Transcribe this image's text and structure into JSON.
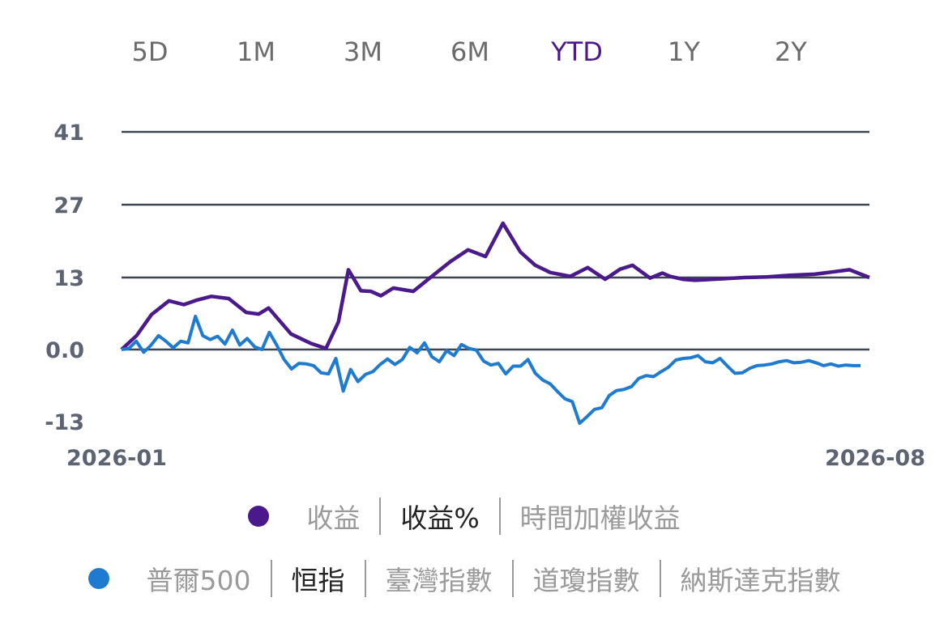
{
  "tabs": [
    "5D",
    "1M",
    "3M",
    "6M",
    "YTD",
    "1Y",
    "2Y"
  ],
  "active_tab": "YTD",
  "legend_main": {
    "color": "#4a1a8c",
    "options": [
      "收益",
      "收益%",
      "時間加權收益"
    ],
    "selected": "收益%"
  },
  "legend_bench": {
    "color": "#1f7bd0",
    "options": [
      "普爾500",
      "恒指",
      "臺灣指數",
      "道瓊指數",
      "納斯達克指數"
    ],
    "selected": "恒指"
  },
  "chart_data": {
    "type": "line",
    "x_start_label": "2026-01",
    "x_end_label": "2026-08",
    "y_ticks": [
      "41",
      "27",
      "13",
      "0.0",
      "-13"
    ],
    "ylim": [
      -13,
      41
    ],
    "grid": true,
    "series": [
      {
        "color": "#4a1a8c",
        "x": [
          0,
          0.06,
          0.12,
          0.19,
          0.25,
          0.3,
          0.36,
          0.43,
          0.5,
          0.55,
          0.59,
          0.68,
          0.76,
          0.82,
          0.87,
          0.91,
          0.96,
          1.0,
          1.04,
          1.09,
          1.17,
          1.25,
          1.32,
          1.39,
          1.46,
          1.53,
          1.6,
          1.66,
          1.72,
          1.8,
          1.87,
          1.94,
          2.0,
          2.05,
          2.12,
          2.17,
          2.2,
          2.25,
          2.3,
          2.34,
          2.42,
          2.5,
          2.59,
          2.68,
          2.78,
          2.85,
          2.92,
          3.0
        ],
        "values": [
          0,
          2.5,
          6.3,
          8.8,
          8.1,
          8.9,
          9.6,
          9.2,
          6.7,
          6.4,
          7.5,
          2.8,
          1.1,
          0.2,
          5,
          14.4,
          10.6,
          10.5,
          9.7,
          11.1,
          10.5,
          13.4,
          15.9,
          18,
          16.8,
          22.8,
          17.6,
          15.2,
          13.9,
          13.2,
          14.8,
          12.7,
          14.5,
          15.2,
          12.9,
          13.8,
          13.2,
          12.7,
          12.5,
          12.6,
          12.8,
          13,
          13.1,
          13.4,
          13.6,
          14,
          14.4,
          13.0
        ]
      },
      {
        "color": "#1f7bd0",
        "x": [
          0,
          0.02,
          0.04,
          0.06,
          0.08,
          0.1,
          0.12,
          0.14,
          0.16,
          0.18,
          0.2,
          0.22,
          0.24,
          0.26,
          0.28,
          0.3,
          0.32,
          0.34,
          0.36,
          0.38,
          0.4,
          0.42,
          0.44,
          0.46,
          0.48,
          0.5,
          0.52,
          0.54,
          0.56,
          0.58,
          0.6,
          0.62,
          0.64,
          0.66,
          0.68,
          0.7,
          0.72,
          0.74,
          0.76,
          0.78,
          0.8,
          0.82,
          0.84,
          0.86,
          0.88,
          0.9,
          0.92,
          0.94,
          0.96,
          0.98,
          1.0,
          1.02,
          1.04,
          1.06,
          1.08,
          1.1,
          1.12,
          1.14,
          1.16,
          1.18,
          1.2,
          1.22,
          1.24,
          1.26,
          1.28,
          1.3,
          1.32,
          1.34,
          1.36,
          1.38,
          1.4,
          1.42,
          1.44,
          1.46,
          1.48,
          1.5,
          1.52,
          1.54,
          1.56,
          1.58,
          1.6,
          1.62,
          1.64,
          1.66,
          1.68,
          1.7,
          1.72,
          1.74,
          1.76,
          1.78,
          1.8,
          1.82,
          1.84,
          1.86,
          1.88,
          1.9,
          1.92,
          1.94,
          1.96,
          1.98,
          2.0
        ],
        "values": [
          0,
          0.2,
          1.5,
          -0.5,
          0.8,
          2.5,
          1.5,
          0.3,
          1.5,
          1.2,
          6,
          2.5,
          1.8,
          2.4,
          1,
          3.5,
          0.8,
          2,
          0.5,
          0,
          3.1,
          0.8,
          -1.8,
          -3.5,
          -2.5,
          -2.6,
          -2.9,
          -4.2,
          -4.4,
          -1.6,
          -7.5,
          -3.6,
          -5.8,
          -4.5,
          -4,
          -2.7,
          -1.7,
          -2.7,
          -1.8,
          0.4,
          -0.6,
          1.2,
          -1.3,
          -2.2,
          -0.2,
          -1.1,
          0.9,
          0.2,
          -0.1,
          -2.1,
          -2.8,
          -2.5,
          -4.4,
          -3,
          -3,
          -1.8,
          -4.3,
          -5.5,
          -6.2,
          -7.6,
          -8.9,
          -9.4,
          -13.3,
          -12.1,
          -10.8,
          -10.5,
          -8.3,
          -7.4,
          -7.2,
          -6.7,
          -5.2,
          -4.7,
          -4.9,
          -4,
          -3.2,
          -1.9,
          -1.6,
          -1.5,
          -1.1,
          -2.2,
          -2.4,
          -1.6,
          -3,
          -4.3,
          -4.2,
          -3.4,
          -2.9,
          -2.8,
          -2.6,
          -2.2,
          -2,
          -2.4,
          -2.3,
          -2,
          -2.4,
          -2.9,
          -2.6,
          -3,
          -2.8,
          -2.9,
          -2.9
        ]
      }
    ]
  }
}
